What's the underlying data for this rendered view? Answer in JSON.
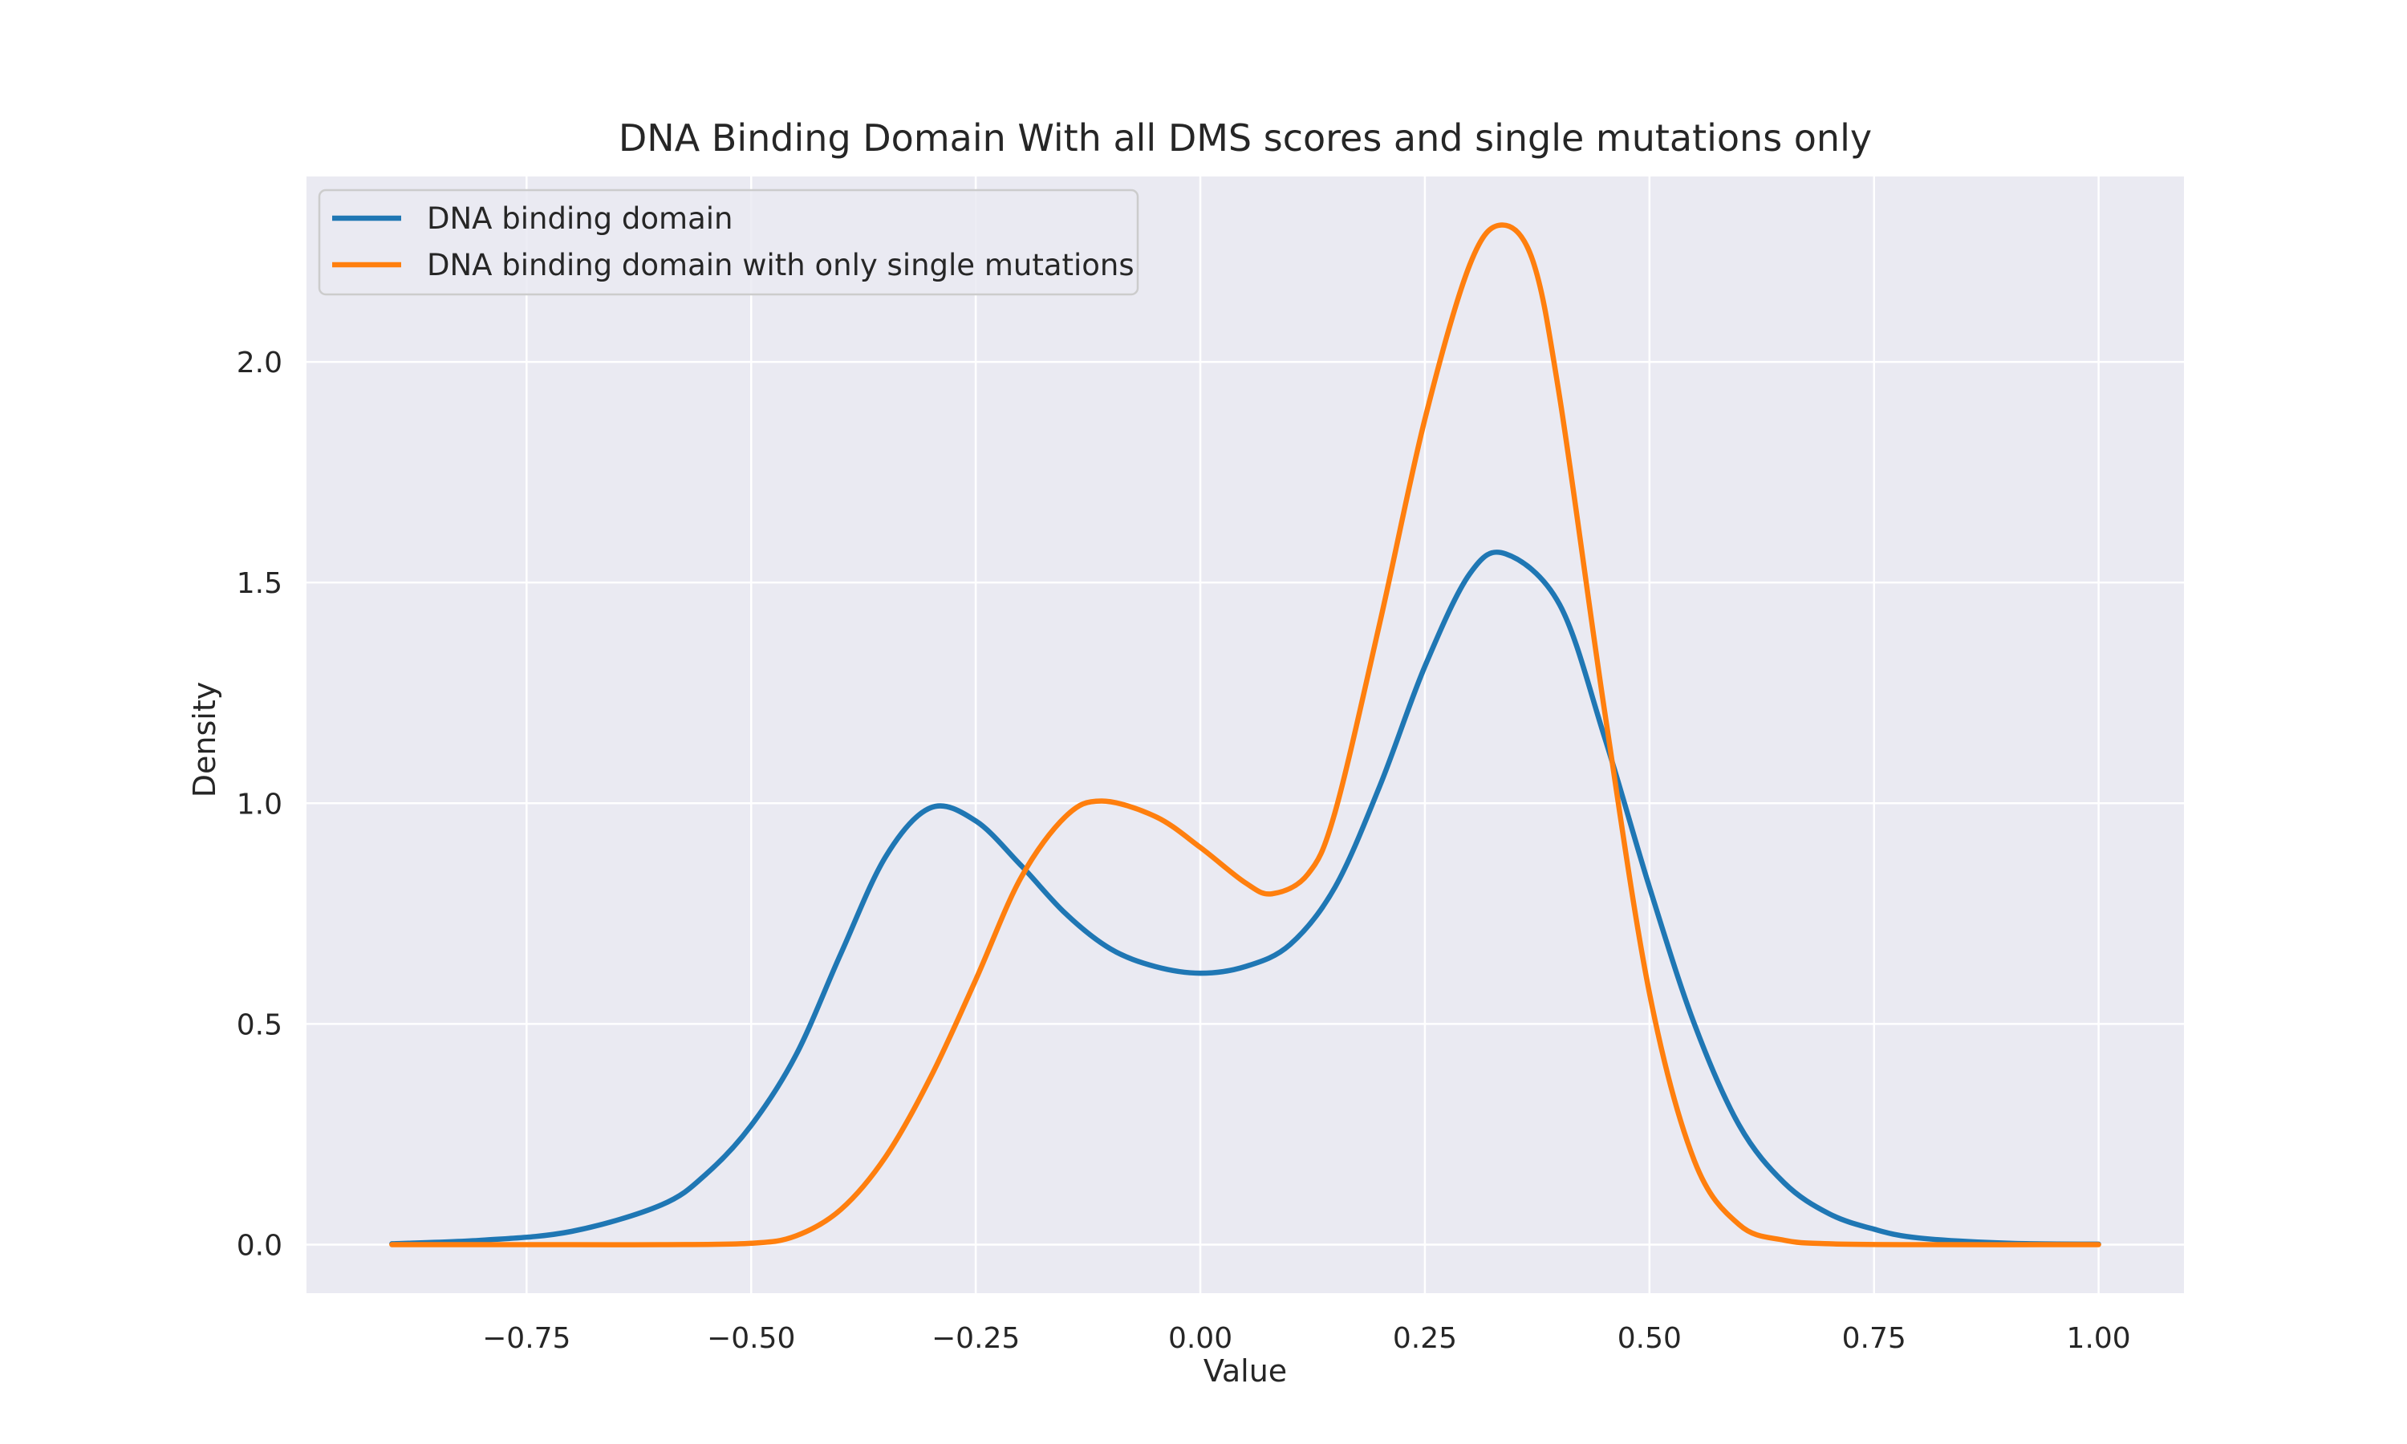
{
  "chart_data": {
    "type": "line",
    "title": "DNA Binding Domain With all DMS scores and single mutations only",
    "xlabel": "Value",
    "ylabel": "Density",
    "xlim": [
      -0.995,
      1.095
    ],
    "ylim": [
      -0.11,
      2.42
    ],
    "xticks": [
      -0.75,
      -0.5,
      -0.25,
      0.0,
      0.25,
      0.5,
      0.75,
      1.0
    ],
    "xtick_labels": [
      "−0.75",
      "−0.50",
      "−0.25",
      "0.00",
      "0.25",
      "0.50",
      "0.75",
      "1.00"
    ],
    "yticks": [
      0.0,
      0.5,
      1.0,
      1.5,
      2.0
    ],
    "ytick_labels": [
      "0.0",
      "0.5",
      "1.0",
      "1.5",
      "2.0"
    ],
    "grid": true,
    "legend_position": "upper-left",
    "colors": {
      "background": "#eaeaf2",
      "grid": "#ffffff"
    },
    "series": [
      {
        "name": "DNA binding domain",
        "color": "#1f77b4",
        "points": [
          [
            -0.9,
            0.002
          ],
          [
            -0.8,
            0.01
          ],
          [
            -0.7,
            0.03
          ],
          [
            -0.6,
            0.09
          ],
          [
            -0.55,
            0.16
          ],
          [
            -0.5,
            0.27
          ],
          [
            -0.45,
            0.43
          ],
          [
            -0.4,
            0.66
          ],
          [
            -0.35,
            0.88
          ],
          [
            -0.3,
            0.99
          ],
          [
            -0.25,
            0.96
          ],
          [
            -0.2,
            0.86
          ],
          [
            -0.15,
            0.75
          ],
          [
            -0.1,
            0.67
          ],
          [
            -0.05,
            0.63
          ],
          [
            0.0,
            0.615
          ],
          [
            0.05,
            0.63
          ],
          [
            0.1,
            0.68
          ],
          [
            0.15,
            0.81
          ],
          [
            0.2,
            1.04
          ],
          [
            0.25,
            1.31
          ],
          [
            0.3,
            1.52
          ],
          [
            0.34,
            1.565
          ],
          [
            0.4,
            1.45
          ],
          [
            0.45,
            1.15
          ],
          [
            0.5,
            0.81
          ],
          [
            0.55,
            0.5
          ],
          [
            0.6,
            0.27
          ],
          [
            0.65,
            0.14
          ],
          [
            0.7,
            0.07
          ],
          [
            0.75,
            0.035
          ],
          [
            0.8,
            0.015
          ],
          [
            0.9,
            0.003
          ],
          [
            1.0,
            0.001
          ]
        ]
      },
      {
        "name": "DNA binding domain with only single mutations",
        "color": "#ff7f0e",
        "points": [
          [
            -0.9,
            0.0
          ],
          [
            -0.7,
            0.0
          ],
          [
            -0.6,
            0.0
          ],
          [
            -0.5,
            0.003
          ],
          [
            -0.45,
            0.02
          ],
          [
            -0.4,
            0.08
          ],
          [
            -0.35,
            0.2
          ],
          [
            -0.3,
            0.38
          ],
          [
            -0.25,
            0.6
          ],
          [
            -0.2,
            0.83
          ],
          [
            -0.15,
            0.97
          ],
          [
            -0.11,
            1.005
          ],
          [
            -0.05,
            0.97
          ],
          [
            0.0,
            0.9
          ],
          [
            0.05,
            0.82
          ],
          [
            0.08,
            0.795
          ],
          [
            0.12,
            0.84
          ],
          [
            0.15,
            0.98
          ],
          [
            0.2,
            1.41
          ],
          [
            0.25,
            1.87
          ],
          [
            0.3,
            2.22
          ],
          [
            0.335,
            2.31
          ],
          [
            0.37,
            2.23
          ],
          [
            0.4,
            1.92
          ],
          [
            0.45,
            1.21
          ],
          [
            0.5,
            0.57
          ],
          [
            0.55,
            0.19
          ],
          [
            0.6,
            0.045
          ],
          [
            0.65,
            0.01
          ],
          [
            0.7,
            0.002
          ],
          [
            0.8,
            0.0
          ],
          [
            1.0,
            0.0
          ]
        ]
      }
    ]
  }
}
